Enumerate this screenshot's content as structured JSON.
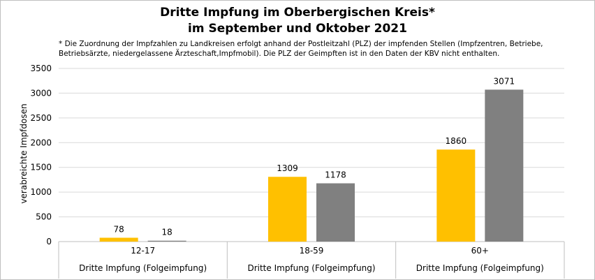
{
  "chart_data": {
    "type": "bar",
    "title": [
      "Dritte Impfung im Oberbergischen Kreis*",
      "im September und Oktober 2021"
    ],
    "subtitle": [
      "* Die Zuordnung der Impfzahlen zu Landkreisen erfolgt anhand der Postleitzahl (PLZ) der impfenden Stellen (Impfzentren, Betriebe,",
      "Betriebsärzte, niedergelassene Ärzteschaft,Impfmobil). Die PLZ der Geimpften ist in den Daten der KBV nicht enthalten."
    ],
    "ylabel": "verabreichte Impfdosen",
    "ylim": [
      0,
      3500
    ],
    "yticks": [
      0,
      500,
      1000,
      1500,
      2000,
      2500,
      3000,
      3500
    ],
    "categories": [
      "12-17",
      "18-59",
      "60+"
    ],
    "category_group_labels": [
      "Dritte Impfung (Folgeimpfung)",
      "Dritte Impfung (Folgeimpfung)",
      "Dritte Impfung (Folgeimpfung)"
    ],
    "series": [
      {
        "values": [
          78,
          1309,
          1860
        ],
        "color": "#ffc000"
      },
      {
        "values": [
          18,
          1178,
          3071
        ],
        "color": "#808080"
      }
    ],
    "grid": true,
    "data_labels": true
  }
}
